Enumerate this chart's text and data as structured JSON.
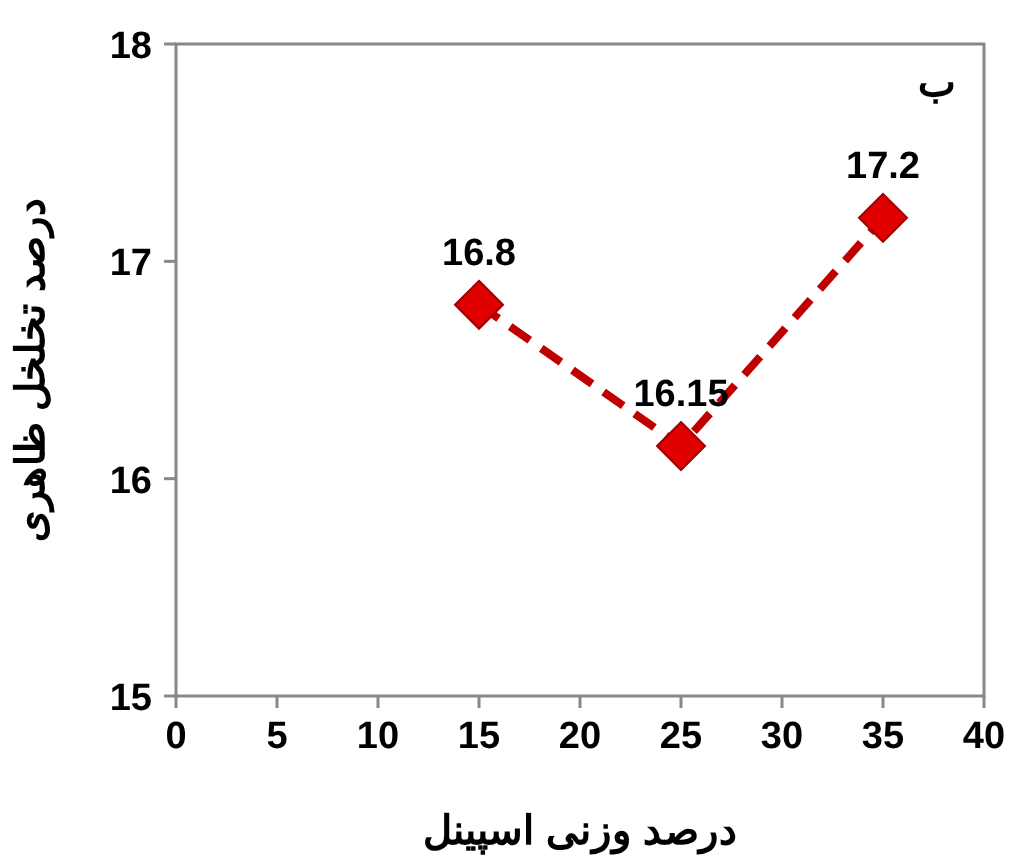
{
  "chart_data": {
    "type": "line",
    "xlabel": "درصد وزنی اسپینل",
    "ylabel": "درصد تخلخل ظاهری",
    "annotations": [
      "ب"
    ],
    "x": [
      15,
      25,
      35
    ],
    "series": [
      {
        "color": "#c00000",
        "values": [
          16.8,
          16.15,
          17.2
        ]
      }
    ],
    "xlim": [
      0,
      40
    ],
    "xticks": [
      0,
      5,
      10,
      15,
      20,
      25,
      30,
      35,
      40
    ],
    "ylim": [
      15,
      18
    ],
    "yticks": [
      15,
      16,
      17,
      18
    ],
    "marker": "diamond",
    "line_style": "dashed",
    "data_labels": true
  }
}
